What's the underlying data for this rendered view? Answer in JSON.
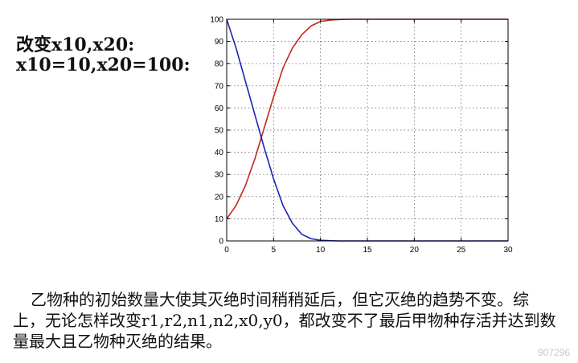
{
  "heading": {
    "line1": "改变x10,x20:",
    "line2": "x10=10,x20=100:"
  },
  "chart_data": {
    "type": "line",
    "xlim": [
      0,
      30
    ],
    "ylim": [
      0,
      100
    ],
    "x_ticks": [
      "0",
      "5",
      "10",
      "15",
      "20",
      "25",
      "30"
    ],
    "y_ticks": [
      "0",
      "10",
      "20",
      "30",
      "40",
      "50",
      "60",
      "70",
      "80",
      "90",
      "100"
    ],
    "grid": true,
    "series": [
      {
        "color": "#c0281e",
        "x": [
          0,
          1,
          2,
          3,
          4,
          5,
          6,
          7,
          8,
          9,
          10,
          11,
          12,
          13,
          15,
          20,
          25,
          30
        ],
        "y": [
          10,
          16,
          25,
          37,
          51,
          65,
          78,
          87,
          93,
          97,
          99,
          99.6,
          99.9,
          100,
          100,
          100,
          100,
          100
        ]
      },
      {
        "color": "#1c23b4",
        "x": [
          0,
          1,
          2,
          3,
          4,
          5,
          6,
          7,
          8,
          9,
          10,
          11,
          12,
          15,
          20,
          25,
          30
        ],
        "y": [
          100,
          87,
          72,
          57,
          42,
          28,
          16,
          8,
          3,
          1,
          0.3,
          0.1,
          0,
          0,
          0,
          0,
          0
        ]
      }
    ]
  },
  "paragraph": "乙物种的初始数量大使其灭绝时间稍稍延后，但它灭绝的趋势不变。综上，无论怎样改变r1,r2,n1,n2,x0,y0，都改变不了最后甲物种存活并达到数量最大且乙物种灭绝的结果。",
  "watermark": "907296"
}
